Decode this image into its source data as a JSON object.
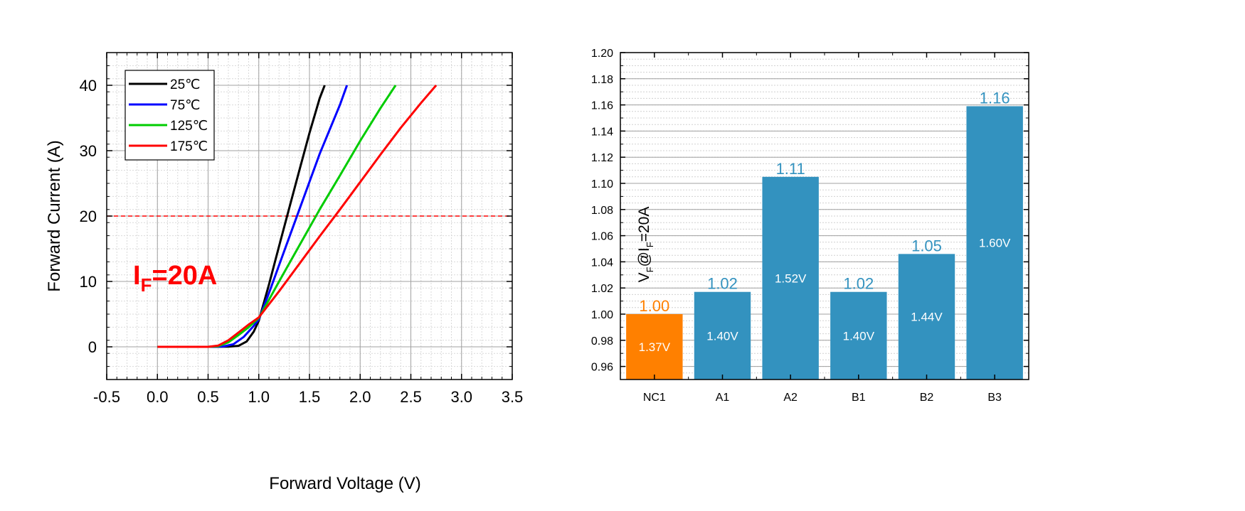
{
  "chart_data": [
    {
      "type": "line",
      "xlabel": "Forward Voltage (V)",
      "ylabel": "Forward Current (A)",
      "xlim": [
        -0.5,
        3.5
      ],
      "ylim": [
        -5,
        45
      ],
      "xticks": [
        "-0.5",
        "0.0",
        "0.5",
        "1.0",
        "1.5",
        "2.0",
        "2.5",
        "3.0",
        "3.5"
      ],
      "yticks": [
        "0",
        "10",
        "20",
        "30",
        "40"
      ],
      "grid": true,
      "legend": "top-left",
      "annotation": {
        "prefix": "I",
        "sub": "F",
        "suffix": "=20A",
        "color": "#ff0000"
      },
      "reference_line": {
        "y": 20,
        "color": "#ff0000",
        "style": "dashed"
      },
      "series": [
        {
          "name": "25℃",
          "color": "#000000",
          "points": [
            [
              0.0,
              0
            ],
            [
              0.5,
              0
            ],
            [
              0.7,
              0.02
            ],
            [
              0.8,
              0.15
            ],
            [
              0.88,
              0.8
            ],
            [
              0.95,
              2.3
            ],
            [
              1.0,
              4.0
            ],
            [
              1.1,
              9.5
            ],
            [
              1.2,
              15.4
            ],
            [
              1.3,
              21.2
            ],
            [
              1.4,
              27.0
            ],
            [
              1.5,
              32.7
            ],
            [
              1.6,
              38.0
            ],
            [
              1.65,
              40.0
            ]
          ]
        },
        {
          "name": "75℃",
          "color": "#0000ff",
          "points": [
            [
              0.0,
              0
            ],
            [
              0.5,
              0
            ],
            [
              0.65,
              0.05
            ],
            [
              0.75,
              0.4
            ],
            [
              0.85,
              1.5
            ],
            [
              0.95,
              3.2
            ],
            [
              1.0,
              4.2
            ],
            [
              1.1,
              8.2
            ],
            [
              1.2,
              12.5
            ],
            [
              1.4,
              21.0
            ],
            [
              1.6,
              29.5
            ],
            [
              1.8,
              37.0
            ],
            [
              1.87,
              40.0
            ]
          ]
        },
        {
          "name": "125℃",
          "color": "#00cc00",
          "points": [
            [
              0.0,
              0
            ],
            [
              0.5,
              0
            ],
            [
              0.6,
              0.1
            ],
            [
              0.7,
              0.7
            ],
            [
              0.8,
              1.8
            ],
            [
              0.9,
              3.0
            ],
            [
              1.0,
              4.4
            ],
            [
              1.2,
              10.0
            ],
            [
              1.4,
              15.5
            ],
            [
              1.6,
              21.0
            ],
            [
              1.8,
              26.2
            ],
            [
              2.0,
              31.5
            ],
            [
              2.2,
              36.5
            ],
            [
              2.35,
              40.0
            ]
          ]
        },
        {
          "name": "175℃",
          "color": "#ff0000",
          "points": [
            [
              0.0,
              0
            ],
            [
              0.5,
              0
            ],
            [
              0.6,
              0.2
            ],
            [
              0.7,
              1.0
            ],
            [
              0.8,
              2.2
            ],
            [
              0.9,
              3.4
            ],
            [
              1.0,
              4.5
            ],
            [
              1.2,
              8.5
            ],
            [
              1.4,
              12.7
            ],
            [
              1.6,
              16.9
            ],
            [
              1.8,
              21.0
            ],
            [
              2.0,
              25.2
            ],
            [
              2.2,
              29.4
            ],
            [
              2.4,
              33.5
            ],
            [
              2.6,
              37.3
            ],
            [
              2.75,
              40.0
            ]
          ]
        }
      ]
    },
    {
      "type": "bar",
      "ylabel": {
        "prefix": "V",
        "sub1": "F",
        "mid": "@I",
        "sub2": "F",
        "suffix": "=20A"
      },
      "ylim": [
        0.95,
        1.2
      ],
      "yticks": [
        "0.96",
        "0.98",
        "1.00",
        "1.02",
        "1.04",
        "1.06",
        "1.08",
        "1.10",
        "1.12",
        "1.14",
        "1.16",
        "1.18",
        "1.20"
      ],
      "grid": true,
      "categories": [
        "NC1",
        "A1",
        "A2",
        "B1",
        "B2",
        "B3"
      ],
      "values": [
        1.0,
        1.017,
        1.105,
        1.017,
        1.046,
        1.159
      ],
      "value_labels": [
        "1.00",
        "1.02",
        "1.11",
        "1.02",
        "1.05",
        "1.16"
      ],
      "inner_labels": [
        "1.37V",
        "1.40V",
        "1.52V",
        "1.40V",
        "1.44V",
        "1.60V"
      ],
      "colors": [
        "#ff8000",
        "#3392bf",
        "#3392bf",
        "#3392bf",
        "#3392bf",
        "#3392bf"
      ],
      "label_colors": [
        "#ff8000",
        "#3392bf",
        "#3392bf",
        "#3392bf",
        "#3392bf",
        "#3392bf"
      ]
    }
  ]
}
